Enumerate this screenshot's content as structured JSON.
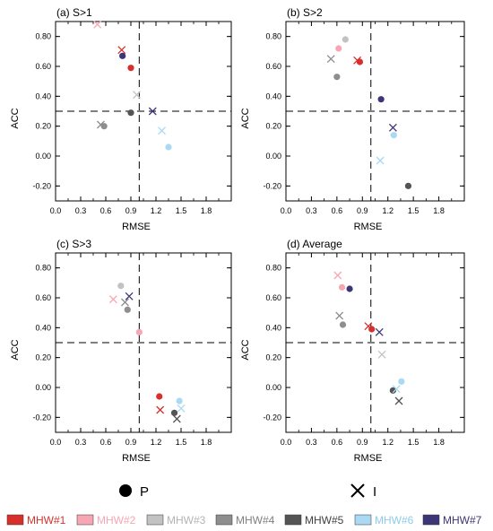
{
  "legend_markers": {
    "p_label": "P",
    "i_label": "I"
  },
  "model_legend": [
    {
      "label": "MHW#1",
      "color": "#d7302c",
      "text_color": "#d7302c"
    },
    {
      "label": "MHW#2",
      "color": "#f7a6b4",
      "text_color": "#f7a6b4"
    },
    {
      "label": "MHW#3",
      "color": "#c2c2c2",
      "text_color": "#b3b3b3"
    },
    {
      "label": "MHW#4",
      "color": "#8e8e8e",
      "text_color": "#7f7f7f"
    },
    {
      "label": "MHW#5",
      "color": "#545454",
      "text_color": "#404040"
    },
    {
      "label": "MHW#6",
      "color": "#a9d9f3",
      "text_color": "#8ccbec"
    },
    {
      "label": "MHW#7",
      "color": "#3c3577",
      "text_color": "#3c3577"
    }
  ],
  "chart_data": [
    {
      "type": "scatter",
      "title": "(a) S>1",
      "xlabel": "RMSE",
      "ylabel": "ACC",
      "xlim": [
        0.0,
        2.1
      ],
      "ylim": [
        -0.3,
        0.9
      ],
      "xticks": [
        "0.0",
        "0.3",
        "0.6",
        "0.9",
        "1.2",
        "1.5",
        "1.8"
      ],
      "yticks": [
        "-0.20",
        "0.00",
        "0.20",
        "0.40",
        "0.60",
        "0.80"
      ],
      "ref_x": 1.0,
      "ref_y": 0.3,
      "series": [
        {
          "name": "MHW#1",
          "P": [
            0.9,
            0.59
          ],
          "I": [
            0.79,
            0.71
          ]
        },
        {
          "name": "MHW#2",
          "P": null,
          "I": [
            0.5,
            0.88
          ]
        },
        {
          "name": "MHW#3",
          "P": null,
          "I": [
            0.97,
            0.41
          ]
        },
        {
          "name": "MHW#4",
          "P": [
            0.58,
            0.2
          ],
          "I": [
            0.54,
            0.21
          ]
        },
        {
          "name": "MHW#5",
          "P": [
            0.9,
            0.29
          ],
          "I": null
        },
        {
          "name": "MHW#6",
          "P": [
            1.35,
            0.06
          ],
          "I": [
            1.27,
            0.17
          ]
        },
        {
          "name": "MHW#7",
          "P": [
            0.8,
            0.67
          ],
          "I": [
            1.16,
            0.3
          ]
        }
      ]
    },
    {
      "type": "scatter",
      "title": "(b) S>2",
      "xlabel": "RMSE",
      "ylabel": "ACC",
      "xlim": [
        0.0,
        2.1
      ],
      "ylim": [
        -0.3,
        0.9
      ],
      "xticks": [
        "0.0",
        "0.3",
        "0.6",
        "0.9",
        "1.2",
        "1.5",
        "1.8"
      ],
      "yticks": [
        "-0.20",
        "0.00",
        "0.20",
        "0.40",
        "0.60",
        "0.80"
      ],
      "ref_x": 1.0,
      "ref_y": 0.3,
      "series": [
        {
          "name": "MHW#1",
          "P": [
            0.87,
            0.63
          ],
          "I": [
            0.84,
            0.64
          ]
        },
        {
          "name": "MHW#2",
          "P": [
            0.62,
            0.72
          ],
          "I": null
        },
        {
          "name": "MHW#3",
          "P": [
            0.7,
            0.78
          ],
          "I": null
        },
        {
          "name": "MHW#4",
          "P": [
            0.6,
            0.53
          ],
          "I": [
            0.53,
            0.65
          ]
        },
        {
          "name": "MHW#5",
          "P": [
            1.44,
            -0.2
          ],
          "I": null
        },
        {
          "name": "MHW#6",
          "P": [
            1.27,
            0.14
          ],
          "I": [
            1.11,
            -0.03
          ]
        },
        {
          "name": "MHW#7",
          "P": [
            1.12,
            0.38
          ],
          "I": [
            1.26,
            0.19
          ]
        }
      ]
    },
    {
      "type": "scatter",
      "title": "(c) S>3",
      "xlabel": "RMSE",
      "ylabel": "ACC",
      "xlim": [
        0.0,
        2.1
      ],
      "ylim": [
        -0.3,
        0.9
      ],
      "xticks": [
        "0.0",
        "0.3",
        "0.6",
        "0.9",
        "1.2",
        "1.5",
        "1.8"
      ],
      "yticks": [
        "-0.20",
        "0.00",
        "0.20",
        "0.40",
        "0.60",
        "0.80"
      ],
      "ref_x": 1.0,
      "ref_y": 0.3,
      "series": [
        {
          "name": "MHW#1",
          "P": [
            1.24,
            -0.06
          ],
          "I": [
            1.25,
            -0.15
          ]
        },
        {
          "name": "MHW#2",
          "P": [
            1.0,
            0.37
          ],
          "I": [
            0.69,
            0.59
          ]
        },
        {
          "name": "MHW#3",
          "P": [
            0.78,
            0.68
          ],
          "I": null
        },
        {
          "name": "MHW#4",
          "P": [
            0.86,
            0.52
          ],
          "I": [
            0.83,
            0.57
          ]
        },
        {
          "name": "MHW#5",
          "P": [
            1.42,
            -0.17
          ],
          "I": [
            1.45,
            -0.21
          ]
        },
        {
          "name": "MHW#6",
          "P": [
            1.48,
            -0.09
          ],
          "I": [
            1.5,
            -0.14
          ]
        },
        {
          "name": "MHW#7",
          "P": null,
          "I": [
            0.88,
            0.61
          ]
        }
      ]
    },
    {
      "type": "scatter",
      "title": "(d) Average",
      "xlabel": "RMSE",
      "ylabel": "ACC",
      "xlim": [
        0.0,
        2.1
      ],
      "ylim": [
        -0.3,
        0.9
      ],
      "xticks": [
        "0.0",
        "0.3",
        "0.6",
        "0.9",
        "1.2",
        "1.5",
        "1.8"
      ],
      "yticks": [
        "-0.20",
        "0.00",
        "0.20",
        "0.40",
        "0.60",
        "0.80"
      ],
      "ref_x": 1.0,
      "ref_y": 0.3,
      "series": [
        {
          "name": "MHW#1",
          "P": [
            1.01,
            0.39
          ],
          "I": [
            0.97,
            0.41
          ]
        },
        {
          "name": "MHW#2",
          "P": [
            0.66,
            0.67
          ],
          "I": [
            0.61,
            0.75
          ]
        },
        {
          "name": "MHW#3",
          "P": null,
          "I": [
            1.13,
            0.22
          ]
        },
        {
          "name": "MHW#4",
          "P": [
            0.67,
            0.42
          ],
          "I": [
            0.63,
            0.48
          ]
        },
        {
          "name": "MHW#5",
          "P": [
            1.26,
            -0.02
          ],
          "I": [
            1.33,
            -0.09
          ]
        },
        {
          "name": "MHW#6",
          "P": [
            1.36,
            0.04
          ],
          "I": [
            1.3,
            -0.01
          ]
        },
        {
          "name": "MHW#7",
          "P": [
            0.75,
            0.66
          ],
          "I": [
            1.1,
            0.37
          ]
        }
      ]
    }
  ]
}
